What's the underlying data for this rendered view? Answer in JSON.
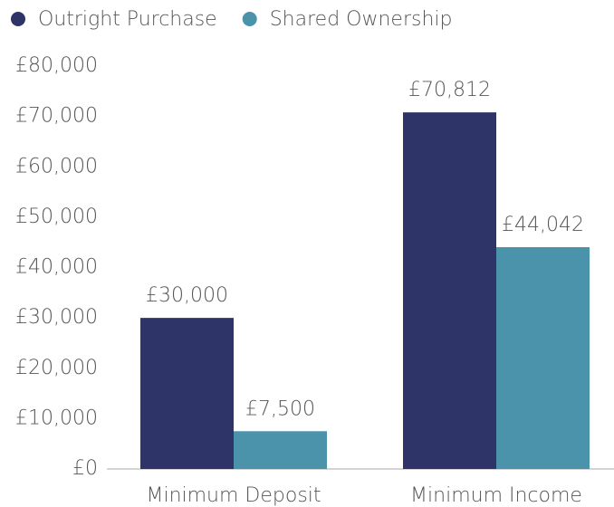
{
  "chart_data": {
    "type": "bar",
    "categories": [
      "Minimum Deposit",
      "Minimum Income"
    ],
    "series": [
      {
        "name": "Outright Purchase",
        "color": "#2e3468",
        "values": [
          30000,
          70812
        ],
        "value_labels": [
          "£30,000",
          "£70,812"
        ]
      },
      {
        "name": "Shared Ownership",
        "color": "#4a93ab",
        "values": [
          7500,
          44042
        ],
        "value_labels": [
          "£7,500",
          "£44,042"
        ]
      }
    ],
    "ylim": [
      0,
      80000
    ],
    "yticks": [
      {
        "value": 0,
        "label": "£0"
      },
      {
        "value": 10000,
        "label": "£10,000"
      },
      {
        "value": 20000,
        "label": "£20,000"
      },
      {
        "value": 30000,
        "label": "£30,000"
      },
      {
        "value": 40000,
        "label": "£40,000"
      },
      {
        "value": 50000,
        "label": "£50,000"
      },
      {
        "value": 60000,
        "label": "£60,000"
      },
      {
        "value": 70000,
        "label": "£70,000"
      },
      {
        "value": 80000,
        "label": "£80,000"
      }
    ],
    "grid": false,
    "legend": "top-left"
  }
}
